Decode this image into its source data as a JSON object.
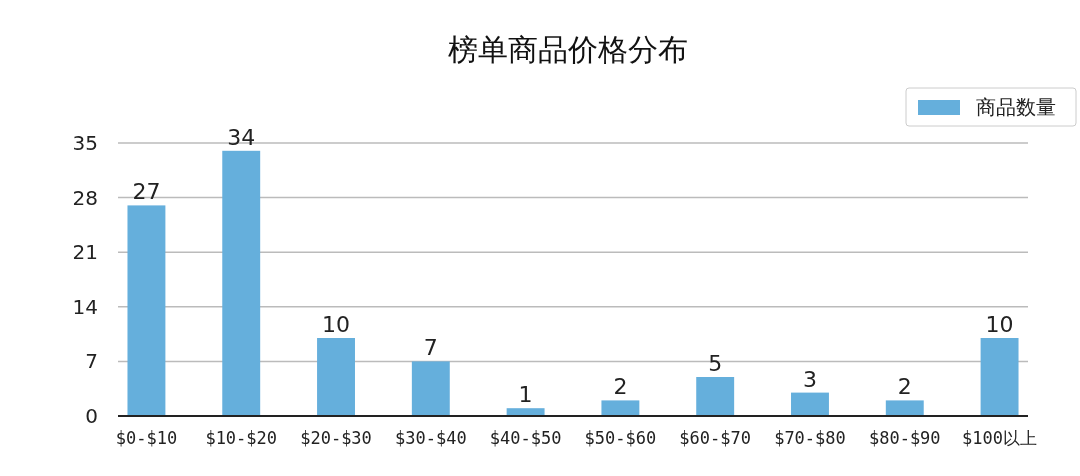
{
  "chart_data": {
    "type": "bar",
    "title": "榜单商品价格分布",
    "categories": [
      "$0-$10",
      "$10-$20",
      "$20-$30",
      "$30-$40",
      "$40-$50",
      "$50-$60",
      "$60-$70",
      "$70-$80",
      "$80-$90",
      "$100以上"
    ],
    "series": [
      {
        "name": "商品数量",
        "color": "#65afdc",
        "values": [
          27,
          34,
          10,
          7,
          1,
          2,
          5,
          3,
          2,
          10
        ]
      }
    ],
    "ylim": [
      0,
      35
    ],
    "yticks": [
      0,
      7,
      14,
      21,
      28,
      35
    ],
    "grid": "y",
    "legend": "top right",
    "data_labels": true
  }
}
